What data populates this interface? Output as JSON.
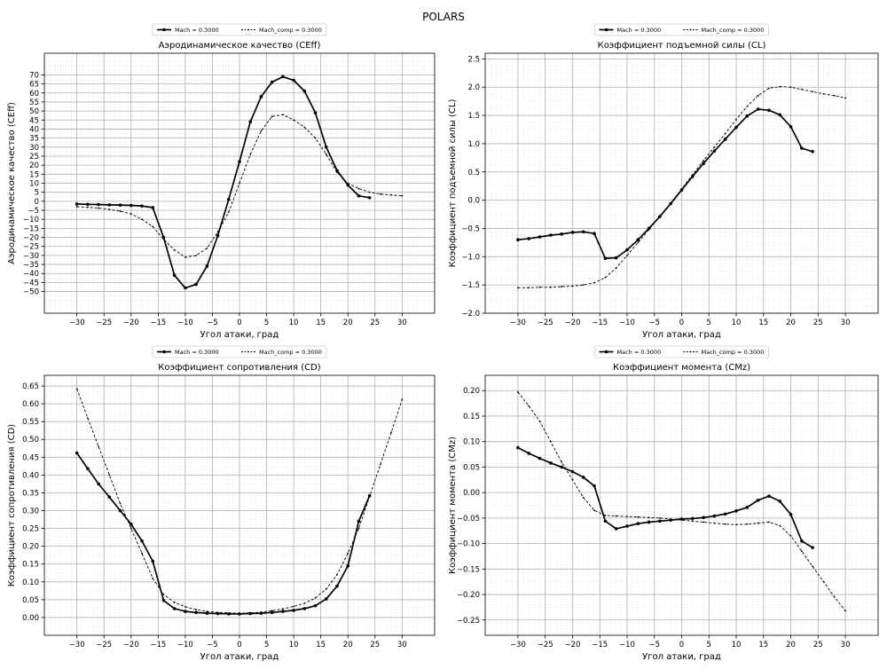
{
  "figure": {
    "title": "POLARS"
  },
  "chart_data": [
    {
      "type": "line",
      "title": "Аэродинамическое качество (CEff)",
      "xlabel": "Угол атаки, град",
      "ylabel": "Аэродинамическое качество (CEff)",
      "xlim": [
        -36,
        36
      ],
      "ylim": [
        -62,
        82
      ],
      "xticks": [
        -30,
        -25,
        -20,
        -15,
        -10,
        -5,
        0,
        5,
        10,
        15,
        20,
        25,
        30
      ],
      "yticks": [
        -50,
        -45,
        -40,
        -35,
        -30,
        -25,
        -20,
        -15,
        -10,
        -5,
        0,
        5,
        10,
        15,
        20,
        25,
        30,
        35,
        40,
        45,
        50,
        55,
        60,
        65,
        70
      ],
      "x_minor_step": 1,
      "y_minor_step": 2.5,
      "grid": true,
      "legend_position": "top-center",
      "series": [
        {
          "name": "Mach = 0.3000",
          "style": "solid-dot",
          "x": [
            -30,
            -28,
            -26,
            -24,
            -22,
            -20,
            -18,
            -16,
            -14,
            -12,
            -10,
            -8,
            -6,
            -4,
            -2,
            0,
            2,
            4,
            6,
            8,
            10,
            12,
            14,
            16,
            18,
            20,
            22,
            24
          ],
          "y": [
            -1.5,
            -1.7,
            -1.8,
            -2.0,
            -2.1,
            -2.3,
            -2.6,
            -3.5,
            -20,
            -41,
            -48,
            -46,
            -36,
            -19,
            1,
            22,
            44,
            58,
            66,
            69,
            67,
            61,
            49,
            30,
            17,
            9,
            3,
            2
          ]
        },
        {
          "name": "Mach_comp = 0.3000",
          "style": "dashed-dot",
          "x": [
            -30,
            -28,
            -26,
            -24,
            -22,
            -20,
            -18,
            -16,
            -14,
            -12,
            -10,
            -8,
            -6,
            -4,
            -2,
            0,
            2,
            4,
            6,
            8,
            10,
            12,
            14,
            16,
            18,
            20,
            22,
            24,
            26,
            28,
            30
          ],
          "y": [
            -3,
            -3.3,
            -3.8,
            -4.5,
            -5.5,
            -7,
            -10,
            -14,
            -21,
            -27,
            -31,
            -30,
            -26,
            -17,
            -6,
            10,
            26,
            39,
            47,
            48,
            45,
            41,
            35,
            26,
            16,
            10,
            7,
            5,
            4,
            3.5,
            3
          ]
        }
      ]
    },
    {
      "type": "line",
      "title": "Коэффициент подъемной силы (CL)",
      "xlabel": "Угол атаки, град",
      "ylabel": "Коэффициент подъемной силы (CL)",
      "xlim": [
        -36,
        36
      ],
      "ylim": [
        -2.0,
        2.6
      ],
      "xticks": [
        -30,
        -25,
        -20,
        -15,
        -10,
        -5,
        0,
        5,
        10,
        15,
        20,
        25,
        30
      ],
      "yticks": [
        -2.0,
        -1.5,
        -1.0,
        -0.5,
        0.0,
        0.5,
        1.0,
        1.5,
        2.0,
        2.5
      ],
      "x_minor_step": 1,
      "y_minor_step": 0.125,
      "grid": true,
      "legend_position": "top-center",
      "series": [
        {
          "name": "Mach = 0.3000",
          "style": "solid-dot",
          "x": [
            -30,
            -28,
            -26,
            -24,
            -22,
            -20,
            -18,
            -16,
            -14,
            -12,
            -10,
            -8,
            -6,
            -4,
            -2,
            0,
            2,
            4,
            6,
            8,
            10,
            12,
            14,
            16,
            18,
            20,
            22,
            24
          ],
          "y": [
            -0.7,
            -0.68,
            -0.65,
            -0.62,
            -0.6,
            -0.57,
            -0.56,
            -0.59,
            -1.03,
            -1.02,
            -0.88,
            -0.7,
            -0.5,
            -0.29,
            -0.06,
            0.18,
            0.42,
            0.65,
            0.87,
            1.08,
            1.29,
            1.49,
            1.61,
            1.59,
            1.51,
            1.3,
            0.92,
            0.86
          ]
        },
        {
          "name": "Mach_comp = 0.3000",
          "style": "dashed-dot",
          "x": [
            -30,
            -28,
            -26,
            -24,
            -22,
            -20,
            -18,
            -16,
            -14,
            -12,
            -10,
            -8,
            -6,
            -4,
            -2,
            0,
            2,
            4,
            6,
            8,
            10,
            12,
            14,
            16,
            18,
            20,
            22,
            24,
            26,
            28,
            30
          ],
          "y": [
            -1.55,
            -1.55,
            -1.54,
            -1.54,
            -1.53,
            -1.52,
            -1.5,
            -1.46,
            -1.37,
            -1.2,
            -0.98,
            -0.75,
            -0.52,
            -0.29,
            -0.05,
            0.2,
            0.45,
            0.7,
            0.94,
            1.18,
            1.43,
            1.66,
            1.85,
            1.98,
            2.01,
            2.0,
            1.96,
            1.92,
            1.88,
            1.85,
            1.81
          ]
        }
      ]
    },
    {
      "type": "line",
      "title": "Коэффициент сопротивления (CD)",
      "xlabel": "Угол атаки, град",
      "ylabel": "Коэффициент сопротивления (CD)",
      "xlim": [
        -36,
        36
      ],
      "ylim": [
        -0.05,
        0.68
      ],
      "xticks": [
        -30,
        -25,
        -20,
        -15,
        -10,
        -5,
        0,
        5,
        10,
        15,
        20,
        25,
        30
      ],
      "yticks": [
        0.0,
        0.05,
        0.1,
        0.15,
        0.2,
        0.25,
        0.3,
        0.35,
        0.4,
        0.45,
        0.5,
        0.55,
        0.6,
        0.65
      ],
      "x_minor_step": 1,
      "y_minor_step": 0.025,
      "grid": true,
      "legend_position": "top-center",
      "series": [
        {
          "name": "Mach = 0.3000",
          "style": "solid-dot",
          "x": [
            -30,
            -28,
            -26,
            -24,
            -22,
            -20,
            -18,
            -16,
            -14,
            -12,
            -10,
            -8,
            -6,
            -4,
            -2,
            0,
            2,
            4,
            6,
            8,
            10,
            12,
            14,
            16,
            18,
            20,
            22,
            24
          ],
          "y": [
            0.462,
            0.418,
            0.375,
            0.338,
            0.3,
            0.262,
            0.215,
            0.158,
            0.048,
            0.025,
            0.017,
            0.014,
            0.012,
            0.011,
            0.01,
            0.01,
            0.011,
            0.012,
            0.014,
            0.017,
            0.02,
            0.025,
            0.033,
            0.052,
            0.088,
            0.145,
            0.27,
            0.342
          ]
        },
        {
          "name": "Mach_comp = 0.3000",
          "style": "dashed-dot",
          "x": [
            -30,
            -28,
            -26,
            -24,
            -22,
            -20,
            -18,
            -16,
            -14,
            -12,
            -10,
            -8,
            -6,
            -4,
            -2,
            0,
            2,
            4,
            6,
            8,
            10,
            12,
            14,
            16,
            18,
            20,
            22,
            24,
            26,
            28,
            30
          ],
          "y": [
            0.642,
            0.56,
            0.48,
            0.4,
            0.32,
            0.25,
            0.18,
            0.11,
            0.065,
            0.042,
            0.03,
            0.022,
            0.017,
            0.014,
            0.013,
            0.012,
            0.013,
            0.015,
            0.019,
            0.024,
            0.031,
            0.04,
            0.055,
            0.08,
            0.12,
            0.18,
            0.25,
            0.34,
            0.43,
            0.52,
            0.612
          ]
        }
      ]
    },
    {
      "type": "line",
      "title": "Коэффициент момента (CMz)",
      "xlabel": "Угол атаки, град",
      "ylabel": "Коэффициент момента (CMz)",
      "xlim": [
        -36,
        36
      ],
      "ylim": [
        -0.28,
        0.23
      ],
      "xticks": [
        -30,
        -25,
        -20,
        -15,
        -10,
        -5,
        0,
        5,
        10,
        15,
        20,
        25,
        30
      ],
      "yticks": [
        -0.25,
        -0.2,
        -0.15,
        -0.1,
        -0.05,
        0.0,
        0.05,
        0.1,
        0.15,
        0.2
      ],
      "x_minor_step": 1,
      "y_minor_step": 0.025,
      "grid": true,
      "legend_position": "top-center",
      "series": [
        {
          "name": "Mach = 0.3000",
          "style": "solid-dot",
          "x": [
            -30,
            -28,
            -26,
            -24,
            -22,
            -20,
            -18,
            -16,
            -14,
            -12,
            -10,
            -8,
            -6,
            -4,
            -2,
            0,
            2,
            4,
            6,
            8,
            10,
            12,
            14,
            16,
            18,
            20,
            22,
            24
          ],
          "y": [
            0.088,
            0.077,
            0.067,
            0.058,
            0.05,
            0.041,
            0.03,
            0.013,
            -0.056,
            -0.071,
            -0.066,
            -0.061,
            -0.058,
            -0.056,
            -0.054,
            -0.052,
            -0.051,
            -0.049,
            -0.046,
            -0.042,
            -0.036,
            -0.029,
            -0.015,
            -0.007,
            -0.017,
            -0.043,
            -0.095,
            -0.108
          ]
        },
        {
          "name": "Mach_comp = 0.3000",
          "style": "dashed-dot",
          "x": [
            -30,
            -28,
            -26,
            -24,
            -22,
            -20,
            -18,
            -16,
            -14,
            -12,
            -10,
            -8,
            -6,
            -4,
            -2,
            0,
            2,
            4,
            6,
            8,
            10,
            12,
            14,
            16,
            18,
            20,
            22,
            24,
            26,
            28,
            30
          ],
          "y": [
            0.197,
            0.17,
            0.14,
            0.1,
            0.06,
            0.025,
            -0.01,
            -0.035,
            -0.045,
            -0.046,
            -0.047,
            -0.048,
            -0.049,
            -0.05,
            -0.052,
            -0.054,
            -0.056,
            -0.058,
            -0.06,
            -0.062,
            -0.063,
            -0.062,
            -0.06,
            -0.058,
            -0.065,
            -0.085,
            -0.115,
            -0.145,
            -0.175,
            -0.205,
            -0.232
          ]
        }
      ]
    }
  ]
}
